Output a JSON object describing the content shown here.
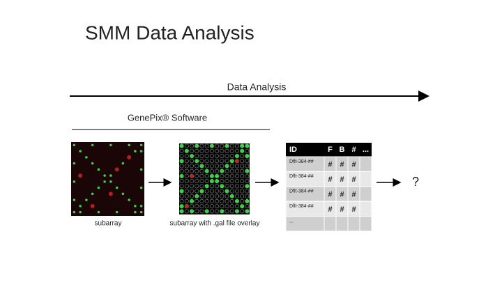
{
  "title": "SMM Data Analysis",
  "flow_label": "Data Analysis",
  "software_label": "GenePix® Software",
  "images": [
    {
      "caption": "subarray"
    },
    {
      "caption": "subarray with .gal file overlay"
    }
  ],
  "table": {
    "header": [
      "ID",
      "F",
      "B",
      "#",
      "..."
    ],
    "rows": [
      [
        "Dflt-384-##",
        "#",
        "#",
        "#"
      ],
      [
        "Dflt-384-##",
        "#",
        "#",
        "#"
      ],
      [
        "Dflt-384-##",
        "#",
        "#",
        "#"
      ],
      [
        "Dflt-384-##",
        "#",
        "#",
        "#"
      ],
      [
        "..."
      ]
    ]
  },
  "result": "?"
}
